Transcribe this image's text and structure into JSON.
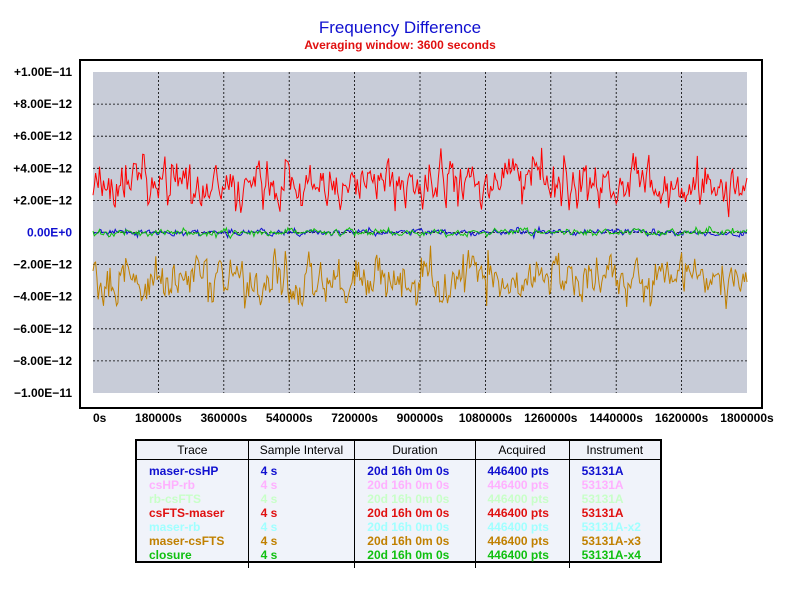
{
  "chart_data": {
    "type": "line",
    "title": "Frequency Difference",
    "subtitle": "Averaging window: 3600 seconds",
    "xlabel": "",
    "ylabel": "",
    "xlim": [
      0,
      1800000
    ],
    "ylim": [
      -1e-11,
      1e-11
    ],
    "grid": true,
    "x_ticks": [
      "0s",
      "180000s",
      "360000s",
      "540000s",
      "720000s",
      "900000s",
      "1080000s",
      "1260000s",
      "1440000s",
      "1620000s",
      "1800000s"
    ],
    "y_ticks": [
      "+1.00E−11",
      "+8.00E−12",
      "+6.00E−12",
      "+4.00E−12",
      "+2.00E−12",
      "0.00E+0",
      "−2.00E−12",
      "−4.00E−12",
      "−6.00E−12",
      "−8.00E−12",
      "−1.00E−11"
    ],
    "series": [
      {
        "name": "maser-csHP",
        "color": "#1010d0",
        "mean": 0.0,
        "noise_std": 1.5e-13,
        "visible": true
      },
      {
        "name": "csHP-rb",
        "color": "#ffb0ff",
        "visible": false
      },
      {
        "name": "rb-csFTS",
        "color": "#c0ffc0",
        "visible": false
      },
      {
        "name": "csFTS-maser",
        "color": "#ff0000",
        "mean": 3e-12,
        "noise_std": 1e-12,
        "visible": true
      },
      {
        "name": "maser-rb",
        "color": "#a0ffff",
        "visible": false
      },
      {
        "name": "maser-csFTS",
        "color": "#c08000",
        "mean": -3e-12,
        "noise_std": 1e-12,
        "visible": true
      },
      {
        "name": "closure",
        "color": "#10c010",
        "mean": 0.0,
        "noise_std": 1.5e-13,
        "visible": true
      }
    ]
  },
  "legend": {
    "headers": [
      "Trace",
      "Sample Interval",
      "Duration",
      "Acquired",
      "Instrument"
    ],
    "rows": [
      {
        "trace": "maser-csHP",
        "interval": "4 s",
        "duration": "20d 16h 0m 0s",
        "acquired": "446400 pts",
        "instrument": "53131A",
        "color": "#1010d0"
      },
      {
        "trace": "csHP-rb",
        "interval": "4 s",
        "duration": "20d 16h 0m 0s",
        "acquired": "446400 pts",
        "instrument": "53131A",
        "color": "#ffb0ff"
      },
      {
        "trace": "rb-csFTS",
        "interval": "4 s",
        "duration": "20d 16h 0m 0s",
        "acquired": "446400 pts",
        "instrument": "53131A",
        "color": "#c8ffc8"
      },
      {
        "trace": "csFTS-maser",
        "interval": "4 s",
        "duration": "20d 16h 0m 0s",
        "acquired": "446400 pts",
        "instrument": "53131A",
        "color": "#e01010"
      },
      {
        "trace": "maser-rb",
        "interval": "4 s",
        "duration": "20d 16h 0m 0s",
        "acquired": "446400 pts",
        "instrument": "53131A-x2",
        "color": "#a0ffff"
      },
      {
        "trace": "maser-csFTS",
        "interval": "4 s",
        "duration": "20d 16h 0m 0s",
        "acquired": "446400 pts",
        "instrument": "53131A-x3",
        "color": "#c08000"
      },
      {
        "trace": "closure",
        "interval": "4 s",
        "duration": "20d 16h 0m 0s",
        "acquired": "446400 pts",
        "instrument": "53131A-x4",
        "color": "#10c010"
      }
    ]
  },
  "colors": {
    "plot_bg": "#c8ccd8",
    "zero_tick": "#1010d0",
    "grid": "#000000"
  }
}
